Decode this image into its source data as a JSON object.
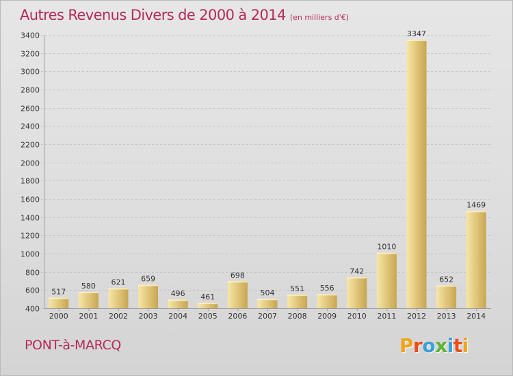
{
  "header": {
    "title": "Autres Revenus Divers de 2000 à 2014",
    "unit": "(en milliers d'€)"
  },
  "footer": {
    "place": "PONT-à-MARCQ",
    "brand": "Proxiti",
    "brand_colors": [
      "#f3a21a",
      "#e94e1b",
      "#3aa0d8",
      "#5cb335",
      "#3aa0d8",
      "#e94e1b",
      "#f3a21a"
    ]
  },
  "colors": {
    "title": "#b42a5a",
    "bar_light": "#f8e6a6",
    "bar_dark": "#c8a650",
    "grid": "#c4c4c4",
    "text": "#333333"
  },
  "chart_data": {
    "type": "bar",
    "title": "Autres Revenus Divers de 2000 à 2014",
    "subtitle": "(en milliers d'€)",
    "xlabel": "",
    "ylabel": "",
    "categories": [
      "2000",
      "2001",
      "2002",
      "2003",
      "2004",
      "2005",
      "2006",
      "2007",
      "2008",
      "2009",
      "2010",
      "2011",
      "2012",
      "2013",
      "2014"
    ],
    "values": [
      517,
      580,
      621,
      659,
      496,
      461,
      698,
      504,
      551,
      556,
      742,
      1010,
      3347,
      652,
      1469
    ],
    "ylim": [
      400,
      3400
    ],
    "yticks": [
      400,
      600,
      800,
      1000,
      1200,
      1400,
      1600,
      1800,
      2000,
      2200,
      2400,
      2600,
      2800,
      3000,
      3200,
      3400
    ],
    "grid": true,
    "grid_axis": "y",
    "data_labels": true,
    "legend": "none"
  }
}
